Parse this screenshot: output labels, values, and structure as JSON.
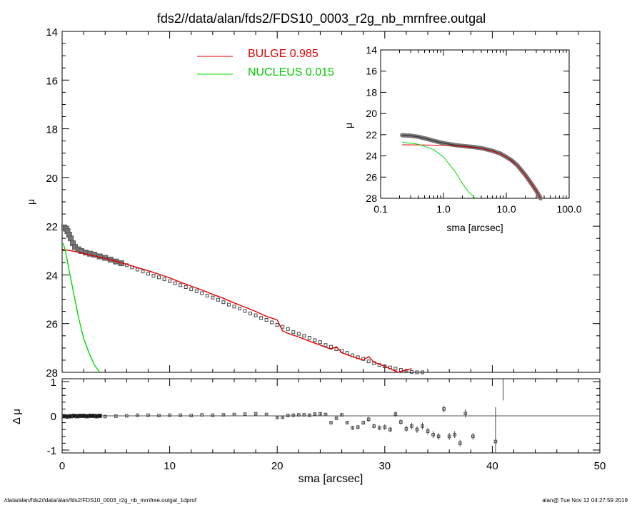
{
  "page": {
    "title": "fds2//data/alan/fds2/FDS10_0003_r2g_nb_mrnfree.outgal",
    "footer_left": "/data/alan/fds2//data/alan/fds2/FDS10_0003_r2g_nb_mrnfree.outgal_1dprof",
    "footer_right": "alan@  Tue Nov 12 04:27:59 2019"
  },
  "colors": {
    "bulge": "#e00000",
    "nucleus": "#00dd00",
    "data": "#666666",
    "axes": "#000000"
  },
  "chart_data": [
    {
      "id": "main",
      "type": "scatter",
      "title": "fds2//data/alan/fds2/FDS10_0003_r2g_nb_mrnfree.outgal",
      "xlabel": "",
      "ylabel": "μ",
      "xlim": [
        0,
        50
      ],
      "ylim": [
        28,
        14
      ],
      "yticks": [
        14,
        16,
        18,
        20,
        22,
        24,
        26,
        28
      ],
      "grid": false,
      "legend": {
        "position": "top-center",
        "entries": [
          {
            "label": "BULGE  0.985",
            "color": "#e00000"
          },
          {
            "label": "NUCLEUS  0.015",
            "color": "#00dd00"
          }
        ]
      },
      "series": [
        {
          "name": "data",
          "marker": "square",
          "x": [
            0.2,
            0.35,
            0.5,
            0.65,
            0.8,
            1.0,
            1.2,
            1.5,
            1.8,
            2.2,
            2.6,
            3.0,
            3.5,
            4.0,
            4.5,
            5.0,
            5.5,
            6.0,
            6.5,
            7.0,
            7.5,
            8.0,
            8.5,
            9.0,
            9.5,
            10.0,
            10.5,
            11.0,
            11.5,
            12.0,
            12.5,
            13.0,
            13.5,
            14.0,
            14.5,
            15.0,
            15.5,
            16.0,
            16.5,
            17.0,
            17.5,
            18.0,
            18.5,
            19.0,
            19.5,
            20.0,
            20.5,
            21.0,
            21.5,
            22.0,
            22.5,
            23.0,
            23.5,
            24.0,
            24.5,
            25.0,
            25.5,
            26.0,
            26.5,
            27.0,
            27.5,
            28.0,
            28.5,
            29.0,
            29.5,
            30.0,
            30.5,
            31.0,
            31.5,
            32.0,
            32.5,
            33.0,
            33.5
          ],
          "y": [
            22.05,
            22.1,
            22.2,
            22.35,
            22.5,
            22.7,
            22.85,
            22.95,
            23.02,
            23.08,
            23.13,
            23.17,
            23.24,
            23.3,
            23.37,
            23.45,
            23.52,
            23.6,
            23.69,
            23.78,
            23.86,
            23.95,
            24.03,
            24.1,
            24.18,
            24.26,
            24.34,
            24.42,
            24.5,
            24.59,
            24.67,
            24.75,
            24.85,
            24.93,
            25.02,
            25.12,
            25.22,
            25.3,
            25.38,
            25.48,
            25.58,
            25.66,
            25.77,
            25.85,
            25.95,
            26.05,
            26.13,
            26.22,
            26.35,
            26.42,
            26.5,
            26.58,
            26.68,
            26.76,
            26.88,
            26.95,
            27.05,
            27.12,
            27.2,
            27.3,
            27.38,
            27.45,
            27.55,
            27.62,
            27.7,
            27.75,
            27.8,
            27.85,
            27.9,
            27.95,
            27.98,
            28.0,
            28.0
          ]
        },
        {
          "name": "BULGE  0.985",
          "color": "#e00000",
          "x": [
            0,
            1,
            2,
            3,
            4,
            5,
            6,
            7,
            8,
            9,
            10,
            11,
            12,
            13,
            14,
            15,
            16,
            17,
            18,
            19,
            20,
            20.5,
            21,
            22,
            23,
            24,
            25,
            25.5,
            26,
            27,
            28,
            28.5,
            29,
            30,
            31,
            31.2,
            32,
            32.5
          ],
          "y": [
            22.95,
            23.02,
            23.12,
            23.22,
            23.32,
            23.44,
            23.56,
            23.7,
            23.83,
            23.97,
            24.12,
            24.3,
            24.46,
            24.62,
            24.8,
            24.96,
            25.15,
            25.32,
            25.5,
            25.7,
            25.85,
            26.3,
            26.4,
            26.55,
            26.72,
            26.88,
            27.05,
            26.95,
            27.2,
            27.36,
            27.5,
            27.35,
            27.58,
            27.75,
            27.95,
            28.05,
            27.9,
            27.85
          ]
        },
        {
          "name": "NUCLEUS  0.015",
          "color": "#00dd00",
          "x": [
            0.1,
            0.3,
            0.6,
            1.0,
            1.5,
            2.0,
            2.5,
            3.0,
            3.5
          ],
          "y": [
            22.7,
            23.0,
            23.7,
            24.6,
            25.7,
            26.6,
            27.2,
            27.7,
            28.0
          ]
        }
      ]
    },
    {
      "id": "inset",
      "type": "line",
      "xlabel": "sma [arcsec]",
      "ylabel": "μ",
      "xscale": "log",
      "xlim": [
        0.1,
        100
      ],
      "ylim": [
        28,
        14
      ],
      "xtick_labels": [
        "0.1",
        "1.0",
        "10.0",
        "100.0"
      ],
      "yticks": [
        14,
        16,
        18,
        20,
        22,
        24,
        26,
        28
      ],
      "series": [
        {
          "name": "data",
          "x": [
            0.22,
            0.3,
            0.4,
            0.55,
            0.75,
            1.0,
            1.5,
            2.0,
            3.0,
            4.0,
            5.0,
            6.0,
            8.0,
            10.0,
            12.0,
            15.0,
            20.0,
            25.0,
            30.0,
            35.0
          ],
          "y": [
            22.05,
            22.1,
            22.2,
            22.4,
            22.62,
            22.8,
            22.97,
            23.06,
            23.16,
            23.27,
            23.4,
            23.52,
            23.78,
            24.1,
            24.4,
            24.9,
            25.8,
            26.6,
            27.3,
            28.0
          ]
        },
        {
          "name": "BULGE  0.985",
          "x": [
            0.22,
            0.5,
            1.0,
            2.0,
            4.0,
            6.0,
            8.0,
            10.0,
            15.0,
            20.0,
            25.0,
            30.0,
            35.0
          ],
          "y": [
            22.95,
            22.97,
            23.0,
            23.1,
            23.3,
            23.55,
            23.8,
            24.1,
            24.9,
            25.8,
            26.6,
            27.3,
            28.0
          ]
        },
        {
          "name": "NUCLEUS  0.015",
          "x": [
            0.22,
            0.4,
            0.7,
            1.0,
            1.5,
            2.0,
            2.5,
            3.2
          ],
          "y": [
            22.7,
            22.9,
            23.4,
            24.1,
            25.4,
            26.6,
            27.4,
            28.0
          ]
        }
      ]
    },
    {
      "id": "residual",
      "type": "scatter",
      "xlabel": "sma [arcsec]",
      "ylabel": "Δ μ",
      "xlim": [
        0,
        50
      ],
      "ylim": [
        -1,
        1
      ],
      "xticks": [
        0,
        10,
        20,
        30,
        40,
        50
      ],
      "yticks": [
        -1,
        0,
        1
      ],
      "series": [
        {
          "name": "residual",
          "x": [
            0.2,
            0.5,
            0.8,
            1.1,
            1.4,
            1.7,
            2.0,
            2.3,
            2.6,
            2.9,
            3.2,
            3.5,
            4,
            5,
            6,
            7,
            8,
            9,
            10,
            11,
            12,
            13,
            14,
            15,
            16,
            17,
            18,
            19,
            20,
            20.5,
            21,
            21.5,
            22,
            22.5,
            23,
            23.5,
            24,
            24.5,
            25,
            25.5,
            26,
            26.5,
            27,
            27.5,
            28,
            28.5,
            29,
            29.5,
            30,
            30.5,
            31,
            31.5,
            32,
            32.5,
            33,
            33.5,
            34,
            34.5,
            35,
            35.5,
            36,
            36.5,
            37,
            37.5,
            38.2,
            40.3
          ],
          "y": [
            -0.01,
            -0.02,
            -0.01,
            0,
            -0.01,
            0,
            0,
            -0.01,
            0,
            0,
            -0.01,
            0,
            -0.02,
            -0.01,
            0,
            0.02,
            0.02,
            0.01,
            0.02,
            0.02,
            0.01,
            0.03,
            0.02,
            0.03,
            0.04,
            0.05,
            0.06,
            0.04,
            -0.05,
            -0.04,
            0.01,
            0.02,
            0.03,
            0.03,
            0.02,
            0.05,
            0.06,
            0.04,
            -0.2,
            -0.07,
            0.03,
            -0.2,
            -0.35,
            -0.33,
            -0.2,
            -0.1,
            -0.3,
            -0.35,
            -0.33,
            -0.4,
            0.05,
            -0.18,
            -0.38,
            -0.3,
            -0.4,
            -0.3,
            -0.45,
            -0.55,
            -0.6,
            0.2,
            -0.6,
            -0.55,
            -0.8,
            0.07,
            -0.6,
            -0.75
          ],
          "err": [
            0.01,
            0.01,
            0.01,
            0.01,
            0.01,
            0.01,
            0.01,
            0.01,
            0.01,
            0.01,
            0.01,
            0.01,
            0.01,
            0.01,
            0.01,
            0.01,
            0.01,
            0.01,
            0.01,
            0.01,
            0.01,
            0.01,
            0.01,
            0.02,
            0.02,
            0.02,
            0.02,
            0.02,
            0.03,
            0.03,
            0.03,
            0.03,
            0.03,
            0.03,
            0.03,
            0.04,
            0.04,
            0.04,
            0.05,
            0.05,
            0.05,
            0.05,
            0.06,
            0.06,
            0.06,
            0.07,
            0.07,
            0.07,
            0.08,
            0.08,
            0.08,
            0.08,
            0.09,
            0.09,
            0.1,
            0.1,
            0.1,
            0.1,
            0.1,
            0.1,
            0.1,
            0.1,
            0.1,
            0.12,
            0.1,
            1.0
          ]
        }
      ]
    }
  ]
}
